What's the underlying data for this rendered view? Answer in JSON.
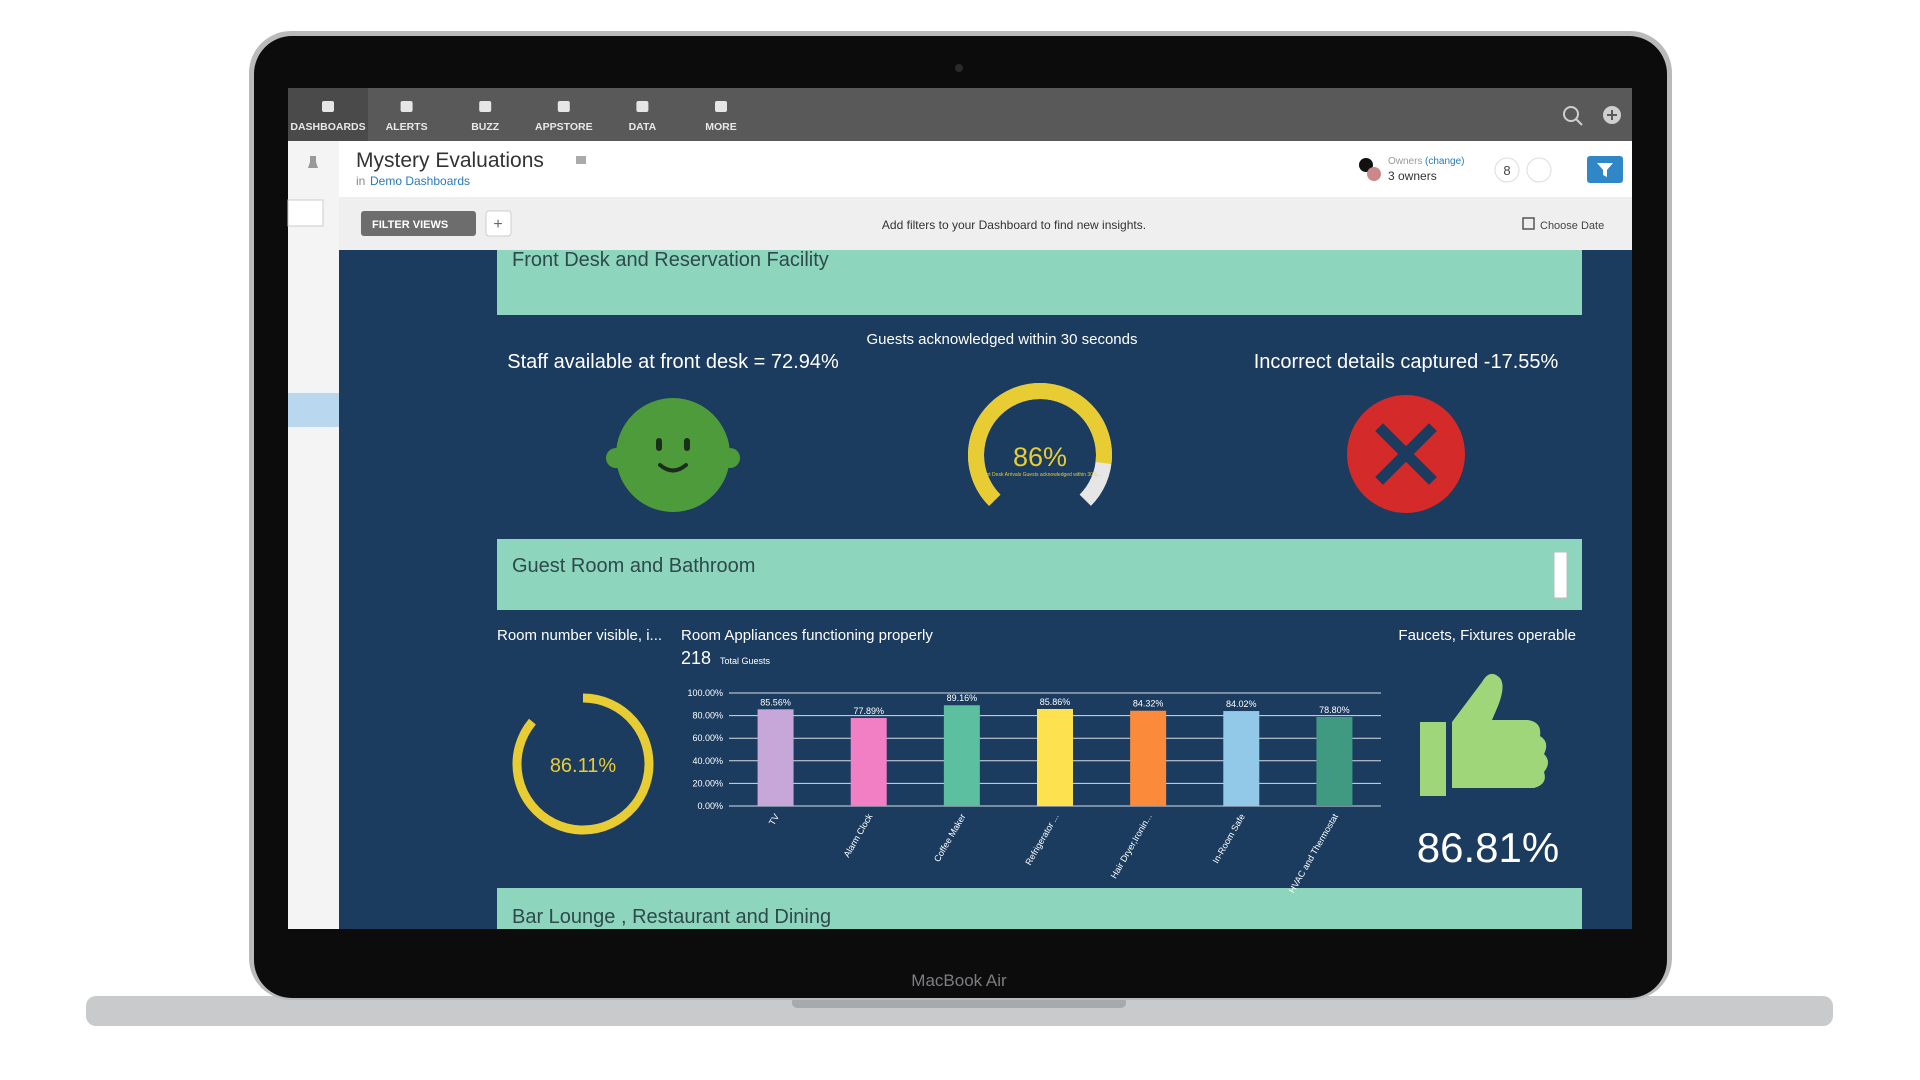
{
  "device_label": "MacBook Air",
  "nav": [
    "DASHBOARDS",
    "ALERTS",
    "BUZZ",
    "APPSTORE",
    "DATA",
    "MORE"
  ],
  "header": {
    "title": "Mystery Evaluations",
    "location_prefix": "in",
    "location": "Demo Dashboards",
    "owners_label": "Owners",
    "owners_change": "(change)",
    "owners": "3 owners",
    "count": 8
  },
  "filter_bar": {
    "button": "FILTER VIEWS",
    "add": "+",
    "hint": "Add filters to your Dashboard to find new insights.",
    "date": "Choose Date"
  },
  "sections": [
    "Front Desk and Reservation Facility",
    "Guest Room and Bathroom",
    "Bar Lounge , Restaurant and Dining"
  ],
  "widgets": {
    "staff": {
      "title": "Staff available at front desk = 72.94%"
    },
    "guests": {
      "title": "Guests acknowledged within 30 seconds",
      "value": 86,
      "label": "86%",
      "caption": "Front Desk Arrivals Guests acknowledged within 30 s..."
    },
    "incorrect": {
      "title": "Incorrect details captured -17.55%"
    },
    "room_number": {
      "title": "Room number visible, i...",
      "value": 86.11,
      "label": "86.11%"
    },
    "faucets": {
      "title": "Faucets, Fixtures operable",
      "value": "86.81%"
    }
  },
  "appliances": {
    "type": "bar",
    "title": "Room Appliances functioning properly",
    "total": 218,
    "total_label": "Total Guests",
    "categories": [
      "TV",
      "Alarm Clock",
      "Coffee Maker",
      "Refrigerator ...",
      "Hair Dryer,Ironin...",
      "In-Room Safe",
      "HVAC and Thermostat"
    ],
    "values": [
      85.56,
      77.89,
      89.16,
      85.86,
      84.32,
      84.02,
      78.8
    ],
    "value_labels": [
      "85.56%",
      "77.89%",
      "89.16%",
      "85.86%",
      "84.32%",
      "84.02%",
      "78.80%"
    ],
    "colors": [
      "#c7a7d9",
      "#f27ec4",
      "#5cbf9f",
      "#fde14f",
      "#fb8b3b",
      "#92c9e9",
      "#3f9a81"
    ],
    "ylim": [
      0,
      100
    ],
    "yticks": [
      {
        "value": 0,
        "label": "0.00%"
      },
      {
        "value": 20,
        "label": "20.00%"
      },
      {
        "value": 40,
        "label": "40.00%"
      },
      {
        "value": 60,
        "label": "60.00%"
      },
      {
        "value": 80,
        "label": "80.00%"
      },
      {
        "value": 100,
        "label": "100.00%"
      }
    ],
    "grid": true
  }
}
